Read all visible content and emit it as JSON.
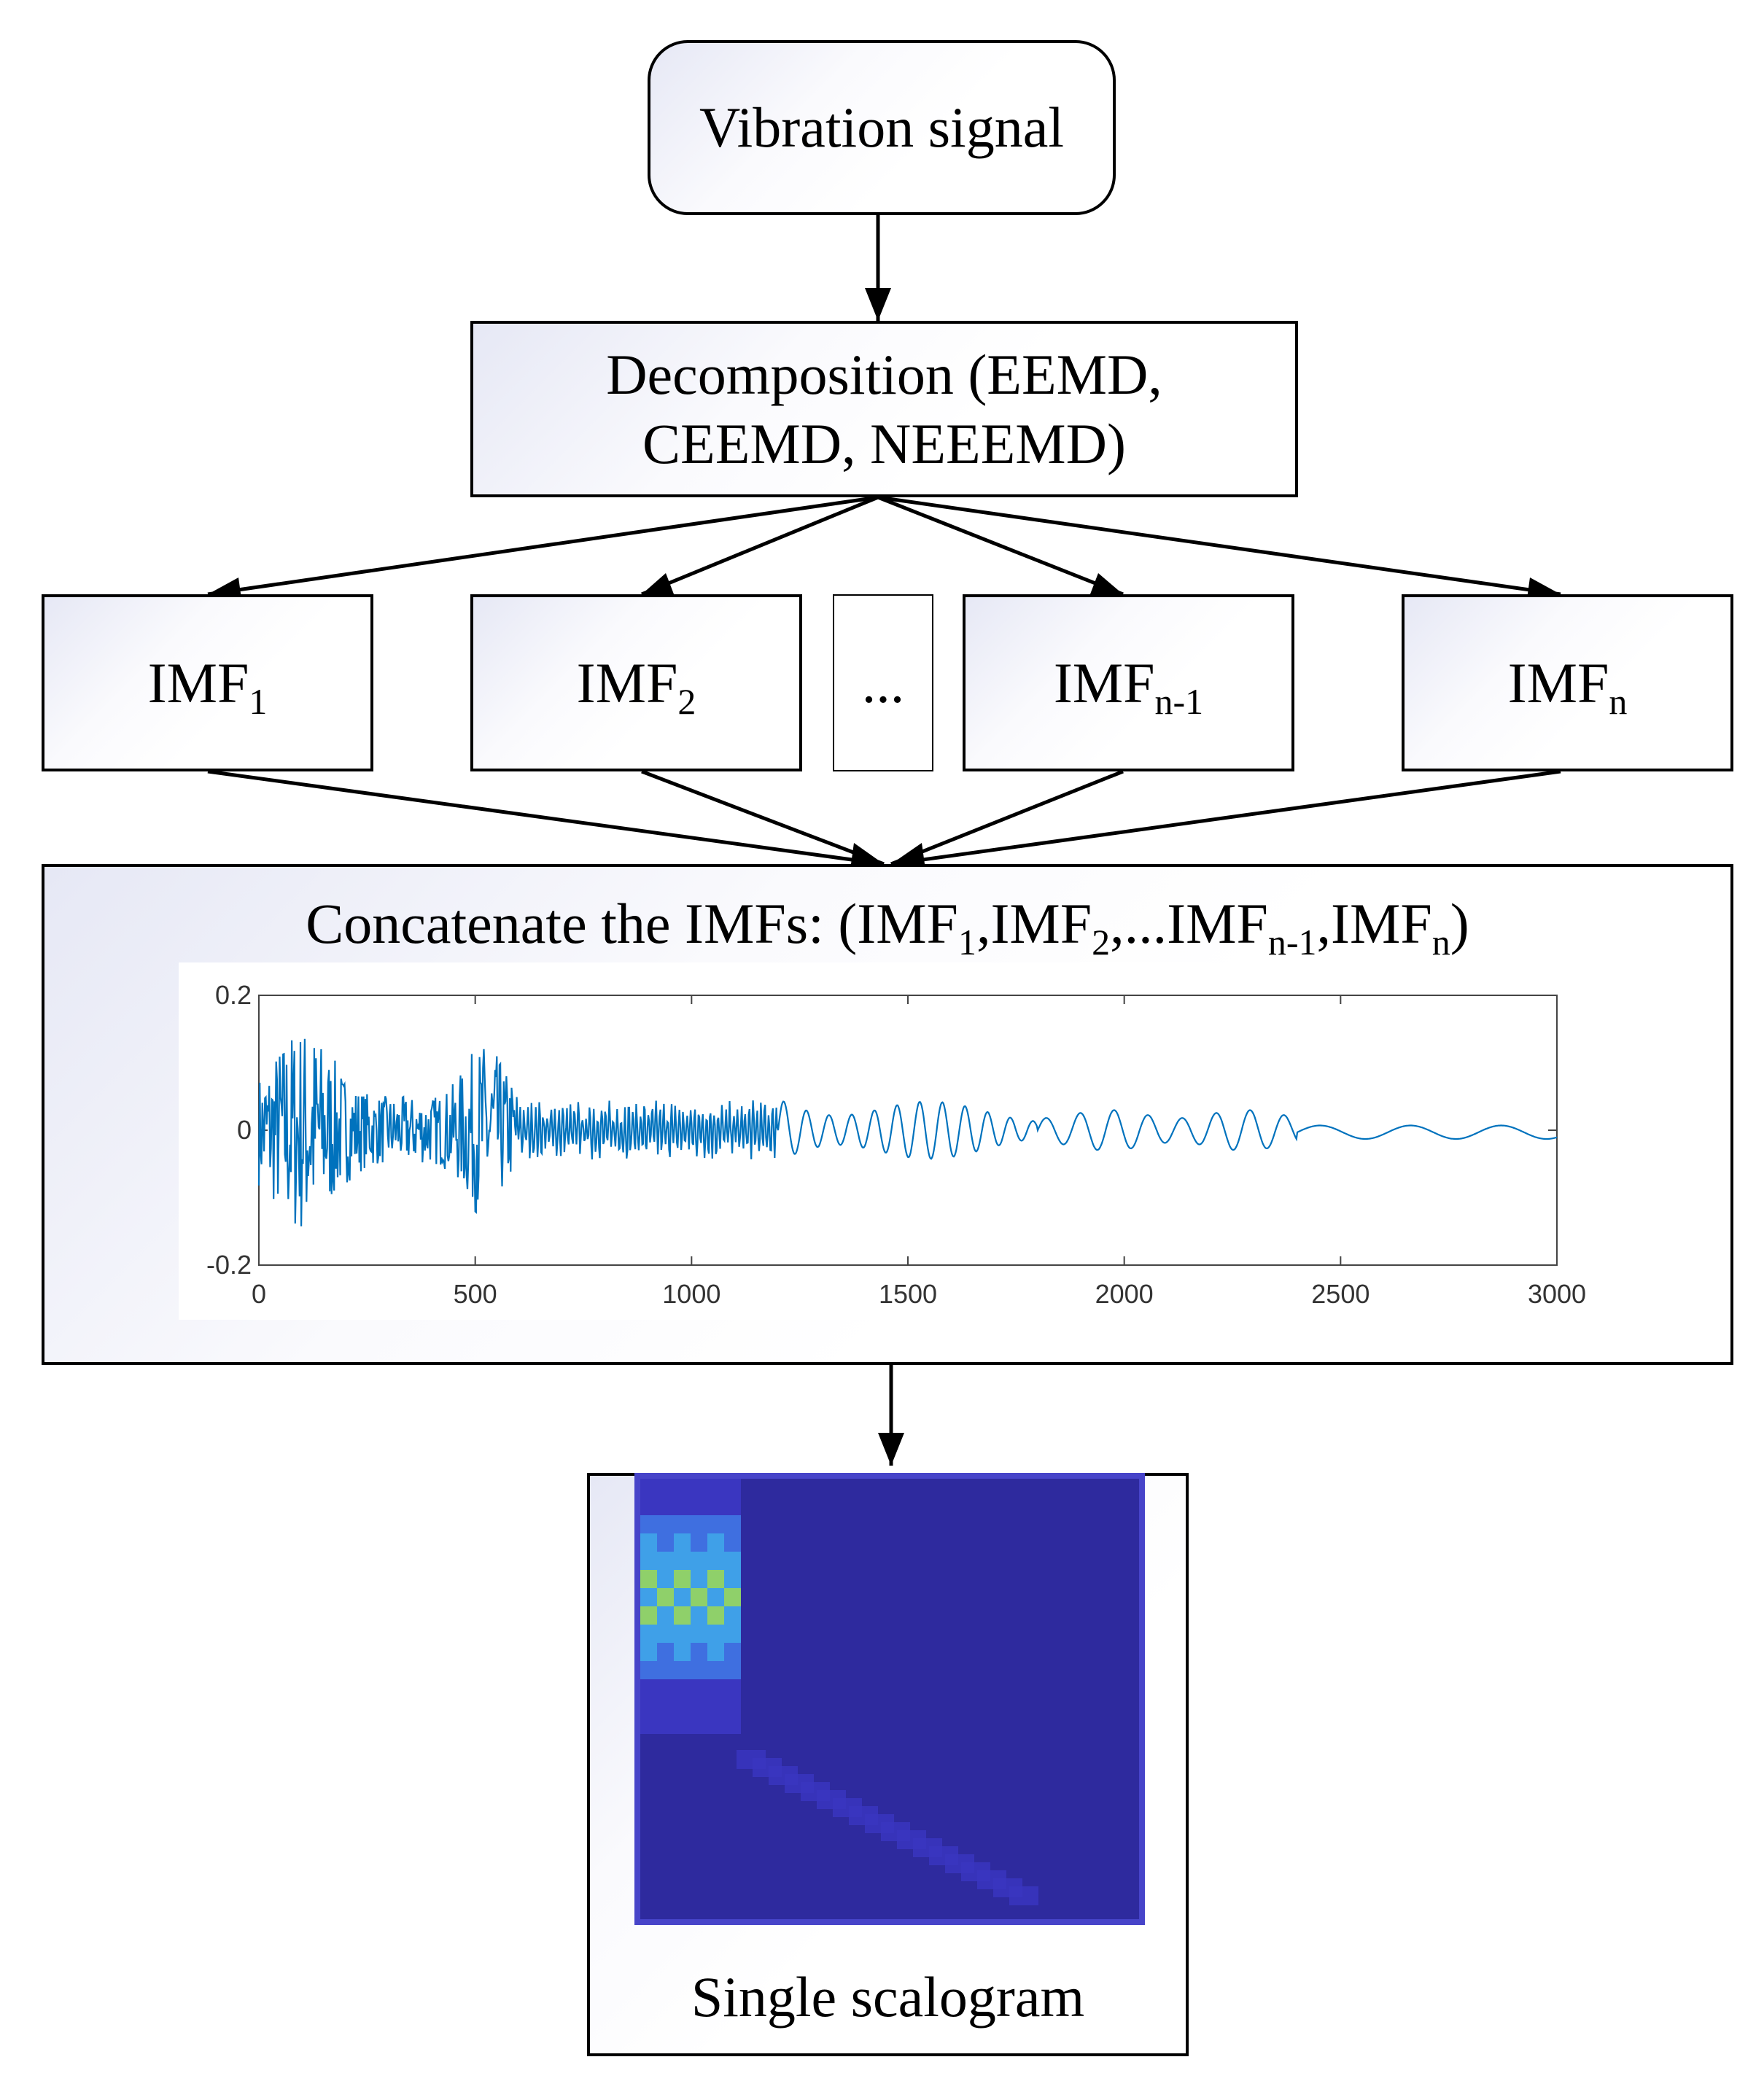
{
  "nodes": {
    "vibration": "Vibration signal",
    "decomposition_line1": "Decomposition (EEMD,",
    "decomposition_line2": "CEEMD, NEEEMD)",
    "imf1": {
      "base": "IMF",
      "sub": "1"
    },
    "imf2": {
      "base": "IMF",
      "sub": "2"
    },
    "ellipsis": "...",
    "imfn1": {
      "base": "IMF",
      "sub": "n-1"
    },
    "imfn": {
      "base": "IMF",
      "sub": "n"
    },
    "concat": {
      "prefix": "Concatenate the IMFs: (",
      "p1": "IMF",
      "s1": "1",
      "p2": ",IMF",
      "s2": "2",
      "p3": ",...IMF",
      "s3": "n-1",
      "p4": ",IMF",
      "s4": "n",
      "suffix": ")"
    },
    "scalogram": "Single scalogram"
  },
  "chart_data": {
    "type": "line",
    "xlim": [
      0,
      3000
    ],
    "ylim": [
      -0.2,
      0.2
    ],
    "x_ticks": [
      "0",
      "500",
      "1000",
      "1500",
      "2000",
      "2500",
      "3000"
    ],
    "y_ticks": [
      "0.2",
      "0",
      "-0.2"
    ],
    "grid": false,
    "line_color": "#0072bd",
    "segments": [
      {
        "x_start": 0,
        "x_end": 600,
        "style": "high-frequency noise",
        "amplitude": 0.16
      },
      {
        "x_start": 600,
        "x_end": 1200,
        "style": "high-frequency",
        "amplitude": 0.035
      },
      {
        "x_start": 1200,
        "x_end": 1800,
        "style": "oscillation",
        "amplitude": 0.07
      },
      {
        "x_start": 1800,
        "x_end": 2400,
        "style": "oscillation",
        "amplitude": 0.03
      },
      {
        "x_start": 2400,
        "x_end": 3000,
        "style": "slow oscillation",
        "amplitude": 0.01
      }
    ]
  },
  "scalogram_colors": {
    "background": "#2e2a9e",
    "low": "#3a36c0",
    "mid": "#3fa0e8",
    "high": "#8fd06a"
  }
}
